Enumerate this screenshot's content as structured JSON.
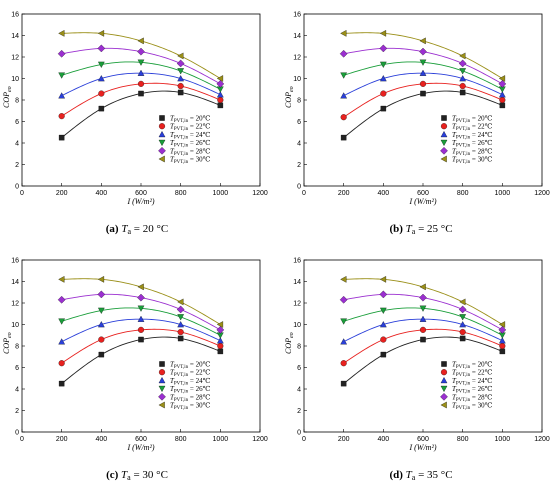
{
  "chart_data": [
    {
      "type": "line",
      "caption_letter": "(a)",
      "caption_sym": "T",
      "caption_sub": "a",
      "caption_rest": " = 20 °C",
      "xlabel": "I (W/m²)",
      "ylabel": "COP",
      "ylabel_sub": "eo",
      "xlim": [
        0,
        1200
      ],
      "ylim": [
        0,
        16
      ],
      "xticks": [
        "0",
        "200",
        "400",
        "600",
        "800",
        "1000",
        "1200"
      ],
      "yticks": [
        "0",
        "2",
        "4",
        "6",
        "8",
        "10",
        "12",
        "14",
        "16"
      ],
      "x": [
        200,
        400,
        600,
        800,
        1000
      ],
      "legend_sym": "T",
      "legend_sub": "PVT,in",
      "series": [
        {
          "name": " = 20℃",
          "color": "#222222",
          "marker": "square",
          "values": [
            4.5,
            7.2,
            8.6,
            8.7,
            7.5
          ]
        },
        {
          "name": " = 22℃",
          "color": "#e8211f",
          "marker": "circle",
          "values": [
            6.5,
            8.6,
            9.5,
            9.3,
            8.0
          ]
        },
        {
          "name": " = 24℃",
          "color": "#2a3fd9",
          "marker": "triangle",
          "values": [
            8.4,
            10.0,
            10.5,
            10.0,
            8.5
          ]
        },
        {
          "name": " = 26℃",
          "color": "#1a9e3a",
          "marker": "tri-down",
          "values": [
            10.3,
            11.3,
            11.5,
            10.7,
            9.0
          ]
        },
        {
          "name": " = 28℃",
          "color": "#9b2fd0",
          "marker": "diamond",
          "values": [
            12.3,
            12.8,
            12.5,
            11.4,
            9.5
          ]
        },
        {
          "name": " = 30℃",
          "color": "#9a8f18",
          "marker": "tri-left",
          "values": [
            14.2,
            14.2,
            13.5,
            12.1,
            10.0
          ]
        }
      ]
    },
    {
      "type": "line",
      "caption_letter": "(b)",
      "caption_sym": "T",
      "caption_sub": "a",
      "caption_rest": " = 25 °C",
      "xlabel": "I (W/m²)",
      "ylabel": "COP",
      "ylabel_sub": "eo",
      "xlim": [
        0,
        1200
      ],
      "ylim": [
        0,
        16
      ],
      "xticks": [
        "0",
        "200",
        "400",
        "600",
        "800",
        "1000",
        "1200"
      ],
      "yticks": [
        "0",
        "2",
        "4",
        "6",
        "8",
        "10",
        "12",
        "14",
        "16"
      ],
      "x": [
        200,
        400,
        600,
        800,
        1000
      ],
      "legend_sym": "T",
      "legend_sub": "PVT,in",
      "series": [
        {
          "name": " = 20℃",
          "color": "#222222",
          "marker": "square",
          "values": [
            4.5,
            7.2,
            8.6,
            8.7,
            7.5
          ]
        },
        {
          "name": " = 22℃",
          "color": "#e8211f",
          "marker": "circle",
          "values": [
            6.4,
            8.6,
            9.5,
            9.3,
            8.0
          ]
        },
        {
          "name": " = 24℃",
          "color": "#2a3fd9",
          "marker": "triangle",
          "values": [
            8.4,
            10.0,
            10.5,
            10.0,
            8.5
          ]
        },
        {
          "name": " = 26℃",
          "color": "#1a9e3a",
          "marker": "tri-down",
          "values": [
            10.3,
            11.3,
            11.5,
            10.7,
            9.0
          ]
        },
        {
          "name": " = 28℃",
          "color": "#9b2fd0",
          "marker": "diamond",
          "values": [
            12.3,
            12.8,
            12.5,
            11.4,
            9.5
          ]
        },
        {
          "name": " = 30℃",
          "color": "#9a8f18",
          "marker": "tri-left",
          "values": [
            14.2,
            14.2,
            13.5,
            12.1,
            10.0
          ]
        }
      ]
    },
    {
      "type": "line",
      "caption_letter": "(c)",
      "caption_sym": "T",
      "caption_sub": "a",
      "caption_rest": " = 30 °C",
      "xlabel": "I (W/m²)",
      "ylabel": "COP",
      "ylabel_sub": "eo",
      "xlim": [
        0,
        1200
      ],
      "ylim": [
        0,
        16
      ],
      "xticks": [
        "0",
        "200",
        "400",
        "600",
        "800",
        "1000",
        "1200"
      ],
      "yticks": [
        "0",
        "2",
        "4",
        "6",
        "8",
        "10",
        "12",
        "14",
        "16"
      ],
      "x": [
        200,
        400,
        600,
        800,
        1000
      ],
      "legend_sym": "T",
      "legend_sub": "PVT,in",
      "series": [
        {
          "name": " = 20℃",
          "color": "#222222",
          "marker": "square",
          "values": [
            4.5,
            7.2,
            8.6,
            8.7,
            7.5
          ]
        },
        {
          "name": " = 22℃",
          "color": "#e8211f",
          "marker": "circle",
          "values": [
            6.4,
            8.6,
            9.5,
            9.3,
            8.0
          ]
        },
        {
          "name": " = 24℃",
          "color": "#2a3fd9",
          "marker": "triangle",
          "values": [
            8.4,
            10.0,
            10.5,
            10.0,
            8.5
          ]
        },
        {
          "name": " = 26℃",
          "color": "#1a9e3a",
          "marker": "tri-down",
          "values": [
            10.3,
            11.3,
            11.5,
            10.7,
            9.0
          ]
        },
        {
          "name": " = 28℃",
          "color": "#9b2fd0",
          "marker": "diamond",
          "values": [
            12.3,
            12.8,
            12.5,
            11.4,
            9.5
          ]
        },
        {
          "name": " = 30℃",
          "color": "#9a8f18",
          "marker": "tri-left",
          "values": [
            14.2,
            14.2,
            13.5,
            12.1,
            10.0
          ]
        }
      ]
    },
    {
      "type": "line",
      "caption_letter": "(d)",
      "caption_sym": "T",
      "caption_sub": "a",
      "caption_rest": " = 35 °C",
      "xlabel": "I (W/m²)",
      "ylabel": "COP",
      "ylabel_sub": "eo",
      "xlim": [
        0,
        1200
      ],
      "ylim": [
        0,
        16
      ],
      "xticks": [
        "0",
        "200",
        "400",
        "600",
        "800",
        "1000",
        "1200"
      ],
      "yticks": [
        "0",
        "2",
        "4",
        "6",
        "8",
        "10",
        "12",
        "14",
        "16"
      ],
      "x": [
        200,
        400,
        600,
        800,
        1000
      ],
      "legend_sym": "T",
      "legend_sub": "PVT,in",
      "series": [
        {
          "name": " = 20℃",
          "color": "#222222",
          "marker": "square",
          "values": [
            4.5,
            7.2,
            8.6,
            8.7,
            7.5
          ]
        },
        {
          "name": " = 22℃",
          "color": "#e8211f",
          "marker": "circle",
          "values": [
            6.4,
            8.6,
            9.5,
            9.3,
            8.0
          ]
        },
        {
          "name": " = 24℃",
          "color": "#2a3fd9",
          "marker": "triangle",
          "values": [
            8.4,
            10.0,
            10.5,
            10.0,
            8.5
          ]
        },
        {
          "name": " = 26℃",
          "color": "#1a9e3a",
          "marker": "tri-down",
          "values": [
            10.3,
            11.3,
            11.5,
            10.7,
            9.0
          ]
        },
        {
          "name": " = 28℃",
          "color": "#9b2fd0",
          "marker": "diamond",
          "values": [
            12.3,
            12.8,
            12.5,
            11.4,
            9.5
          ]
        },
        {
          "name": " = 30℃",
          "color": "#9a8f18",
          "marker": "tri-left",
          "values": [
            14.2,
            14.2,
            13.5,
            12.1,
            10.0
          ]
        }
      ]
    }
  ]
}
